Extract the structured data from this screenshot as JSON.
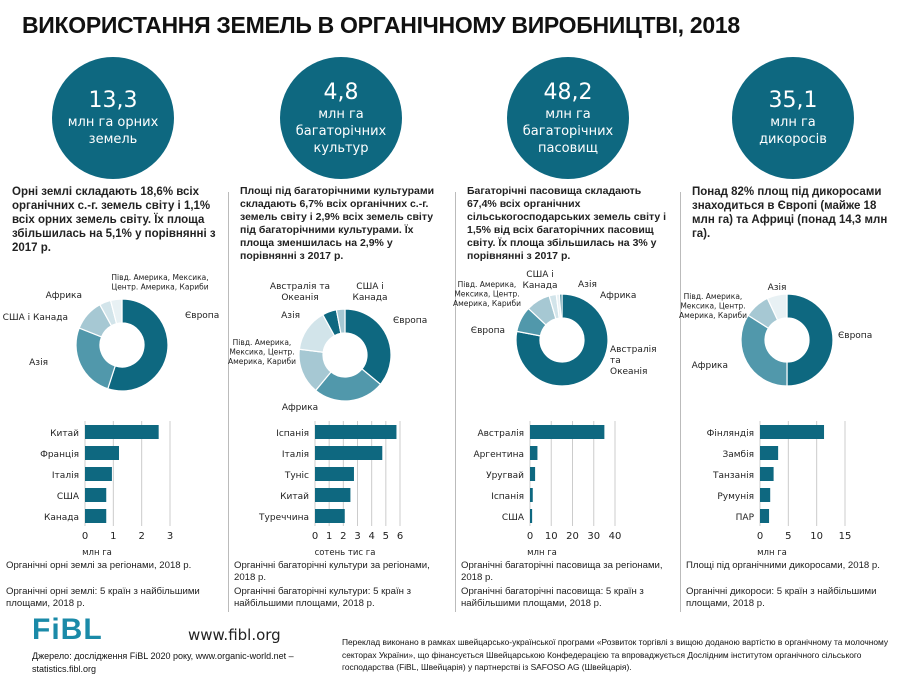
{
  "title": "ВИКОРИСТАННЯ ЗЕМЕЛЬ В ОРГАНІЧНОМУ ВИРОБНИЦТВІ, 2018",
  "colors": {
    "dark": "#0e6880",
    "mid": "#5198ab",
    "light": "#a6c8d3",
    "lighter": "#d2e4ea",
    "lightest": "#e8f1f4"
  },
  "columns": [
    {
      "circle_value": "13,3",
      "circle_unit": "млн га орних земель",
      "description": "Орні землі складають 18,6% всіх органічних с.-г. земель світу і 1,1% всіх орних земель світу. Їх площа збільшилась на 5,1% у порівнянні з 2017 р.",
      "donut": [
        {
          "label": "Європа",
          "value": 55,
          "color": "dark"
        },
        {
          "label": "Азія",
          "value": 26,
          "color": "mid"
        },
        {
          "label": "США і Канада",
          "value": 11,
          "color": "light"
        },
        {
          "label": "Африка",
          "value": 4,
          "color": "lighter"
        },
        {
          "label": "Півд. Америка, Мексика, Центр. Америка, Кариби",
          "value": 4,
          "color": "lightest"
        }
      ],
      "bars": {
        "categories": [
          "Китай",
          "Франція",
          "Італія",
          "США",
          "Канада"
        ],
        "values": [
          2.6,
          1.2,
          0.95,
          0.75,
          0.75
        ],
        "ticks": [
          0,
          1,
          2,
          3
        ],
        "max": 3,
        "xlabel": "млн га"
      },
      "caption1": "Органічні орні землі за регіонами, 2018 р.",
      "caption2": "Органічні орні землі: 5 країн з найбільшими площами, 2018 р."
    },
    {
      "circle_value": "4,8",
      "circle_unit": "млн га багаторічних культур",
      "description": "Площі під багаторічними культурами складають 6,7% всіх органічних с.-г. земель світу і 2,9% всіх земель світу під багаторічними культурами. Їх площа зменшилась на 2,9% у порівнянні з 2017 р.",
      "donut": [
        {
          "label": "Європа",
          "value": 36,
          "color": "dark"
        },
        {
          "label": "Африка",
          "value": 25,
          "color": "mid"
        },
        {
          "label": "Півд. Америка, Мексика, Центр. Америка, Кариби",
          "value": 16,
          "color": "light"
        },
        {
          "label": "Азія",
          "value": 15,
          "color": "lighter"
        },
        {
          "label": "Австралія та Океанія",
          "value": 5,
          "color": "dark"
        },
        {
          "label": "США і Канада",
          "value": 3,
          "color": "light"
        }
      ],
      "bars": {
        "categories": [
          "Іспанія",
          "Італія",
          "Туніс",
          "Китай",
          "Туреччина"
        ],
        "values": [
          5.75,
          4.75,
          2.75,
          2.5,
          2.1
        ],
        "ticks": [
          0,
          1,
          2,
          3,
          4,
          5,
          6
        ],
        "max": 6,
        "xlabel": "сотень тис га"
      },
      "caption1": "Органічні багаторічні культури за регіонами, 2018 р.",
      "caption2": "Органічні багаторічні культури: 5 країн з найбільшими площами, 2018 р."
    },
    {
      "circle_value": "48,2",
      "circle_unit": "млн га багаторічних пасовищ",
      "description": "Багаторічні пасовища складають 67,4% всіх органічних сільськогосподарських земель світу і 1,5% від всіх багаторічних пасовищ світу. Їх площа збільшилась на 3% у порівнянні з 2017 р.",
      "donut": [
        {
          "label": "Австралія та Океанія",
          "value": 78,
          "color": "dark"
        },
        {
          "label": "Європа",
          "value": 9,
          "color": "mid"
        },
        {
          "label": "Півд. Америка, Мексика, Центр. Америка, Кариби",
          "value": 8.5,
          "color": "light"
        },
        {
          "label": "США і Канада",
          "value": 2.5,
          "color": "lighter"
        },
        {
          "label": "Азія",
          "value": 1.2,
          "color": "lightest"
        },
        {
          "label": "Африка",
          "value": 0.8,
          "color": "dark"
        }
      ],
      "bars": {
        "categories": [
          "Австралія",
          "Аргентина",
          "Уругвай",
          "Іспанія",
          "США"
        ],
        "values": [
          35,
          3.5,
          2.4,
          1.3,
          1.0
        ],
        "ticks": [
          0,
          10,
          20,
          30,
          40
        ],
        "max": 40,
        "xlabel": "млн га"
      },
      "caption1": "Органічні багаторічні пасовища за регіонами, 2018 р.",
      "caption2": "Органічні багаторічні пасовища: 5 країн з найбільшими площами, 2018 р."
    },
    {
      "circle_value": "35,1",
      "circle_unit": "млн га дикоросів",
      "description": "Понад 82% площ під дикоросами знаходиться в Європі (майже 18 млн га) та Африці (понад 14,3 млн га).",
      "donut": [
        {
          "label": "Європа",
          "value": 50,
          "color": "dark"
        },
        {
          "label": "Африка",
          "value": 34,
          "color": "mid"
        },
        {
          "label": "Півд. Америка, Мексика, Центр. Америка, Кариби",
          "value": 9,
          "color": "light"
        },
        {
          "label": "Азія",
          "value": 7,
          "color": "lightest"
        }
      ],
      "bars": {
        "categories": [
          "Фінляндія",
          "Замбія",
          "Танзанія",
          "Румунія",
          "ПАР"
        ],
        "values": [
          11.3,
          3.2,
          2.4,
          1.8,
          1.6
        ],
        "ticks": [
          0,
          5,
          10,
          15
        ],
        "max": 15,
        "xlabel": "млн га"
      },
      "caption1": "Площі під органічними дикоросами, 2018 р.",
      "caption2": "Органічні дикороси: 5 країн з найбільшими площами, 2018 р."
    }
  ],
  "footer": {
    "logo": "FiBL",
    "url": "www.fibl.org",
    "source": "Джерело: дослідження FiBL 2020 року, www.organic-world.net – statistics.fibl.org",
    "translation": "Переклад виконано в рамках швейцарсько-української програми «Розвиток торгівлі з вищою доданою вартістю в органічному та молочному секторах України», що фінансується Швейцарською Конфедерацією та впроваджується Дослідним інститутом органічного сільського господарства (FiBL, Швейцарія) у партнерстві із SAFOSO AG (Швейцарія)."
  }
}
